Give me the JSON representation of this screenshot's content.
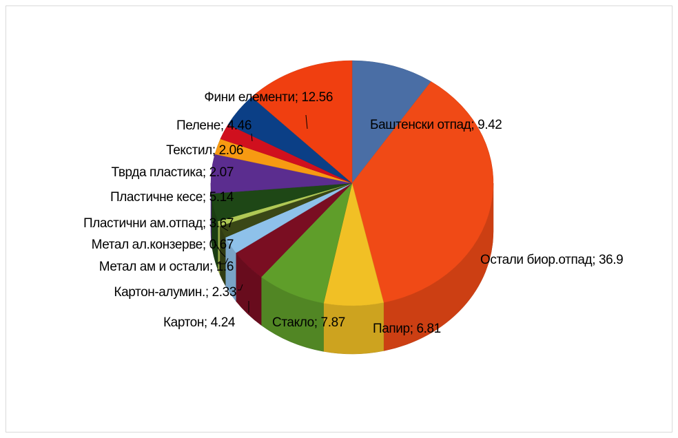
{
  "chart_data": {
    "type": "pie",
    "title": "",
    "legend": "none",
    "separator": "; ",
    "slices": [
      {
        "label": "Баштенски отпад",
        "value": 9.42,
        "value_text": "9.42",
        "color": "#4a6ea5"
      },
      {
        "label": "Остали биор.отпад",
        "value": 36.9,
        "value_text": "36.9",
        "color": "#f04a16"
      },
      {
        "label": "Папир",
        "value": 6.81,
        "value_text": "6.81",
        "color": "#f1c025"
      },
      {
        "label": "Стакло",
        "value": 7.87,
        "value_text": "7.87",
        "color": "#5f9e2a"
      },
      {
        "label": "Картон",
        "value": 4.24,
        "value_text": "4.24",
        "color": "#7a0e22"
      },
      {
        "label": "Картон-алумин.",
        "value": 2.33,
        "value_text": "2.33",
        "color": "#8ec1ea"
      },
      {
        "label": "Метал ам и остали",
        "value": 1.6,
        "value_text": "1.6",
        "color": "#3a4716"
      },
      {
        "label": "Метал ал.конзерве",
        "value": 0.67,
        "value_text": "0.67",
        "color": "#b0c955"
      },
      {
        "label": "Пластични ам.отпад",
        "value": 3.67,
        "value_text": "3.67",
        "color": "#1e4716"
      },
      {
        "label": "Пластичне кесе",
        "value": 5.14,
        "value_text": "5.14",
        "color": "#5b2d8f"
      },
      {
        "label": "Тврда пластика",
        "value": 2.07,
        "value_text": "2.07",
        "color": "#f79a12"
      },
      {
        "label": "Текстил",
        "value": 2.06,
        "value_text": "2.06",
        "color": "#d0101e"
      },
      {
        "label": "Пелене",
        "value": 4.46,
        "value_text": "4.46",
        "color": "#0b3f86"
      },
      {
        "label": "Фини елементи",
        "value": 12.56,
        "value_text": "12.56",
        "color": "#f03f10"
      }
    ]
  }
}
